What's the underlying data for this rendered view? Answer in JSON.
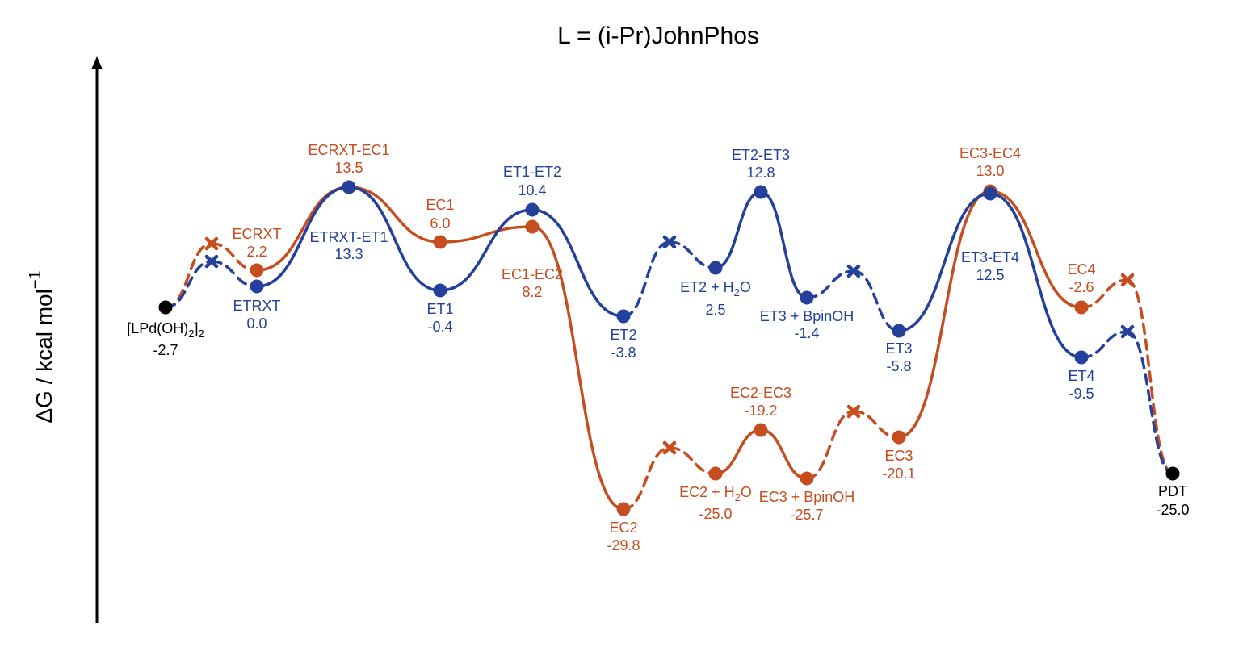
{
  "title": "L = (i-Pr)JohnPhos",
  "y_axis_label": "ΔG / kcal mol",
  "y_axis_label_sup": "−1",
  "colors": {
    "blue": "#23409a",
    "orange": "#c64d1f",
    "black": "#000000"
  },
  "states": {
    "start": {
      "name": "[LPd(OH)",
      "sub": "2",
      "name_end": "]",
      "sub_end": "2",
      "value": "-2.7"
    },
    "ECRXT": {
      "name": "ECRXT",
      "value": "2.2"
    },
    "ETRXT": {
      "name": "ETRXT",
      "value": "0.0"
    },
    "ECRXT_EC1": {
      "name": "ECRXT-EC1",
      "value": "13.5"
    },
    "ETRXT_ET1": {
      "name": "ETRXT-ET1",
      "value": "13.3"
    },
    "EC1": {
      "name": "EC1",
      "value": "6.0"
    },
    "ET1": {
      "name": "ET1",
      "value": "-0.4"
    },
    "ET1_ET2": {
      "name": "ET1-ET2",
      "value": "10.4"
    },
    "EC1_EC2": {
      "name": "EC1-EC2",
      "value": "8.2"
    },
    "ET2": {
      "name": "ET2",
      "value": "-3.8"
    },
    "EC2": {
      "name": "EC2",
      "value": "-29.8"
    },
    "ET2_H2O": {
      "name": "ET2 + H",
      "sub": "2",
      "name_end": "O",
      "value": "2.5"
    },
    "EC2_H2O": {
      "name": "EC2 + H",
      "sub": "2",
      "name_end": "O",
      "value": "-25.0"
    },
    "ET2_ET3": {
      "name": "ET2-ET3",
      "value": "12.8"
    },
    "EC2_EC3": {
      "name": "EC2-EC3",
      "value": "-19.2"
    },
    "ET3_BpinOH": {
      "name": "ET3 + BpinOH",
      "value": "-1.4"
    },
    "EC3_BpinOH": {
      "name": "EC3 + BpinOH",
      "value": "-25.7"
    },
    "ET3": {
      "name": "ET3",
      "value": "-5.8"
    },
    "EC3": {
      "name": "EC3",
      "value": "-20.1"
    },
    "EC3_EC4": {
      "name": "EC3-EC4",
      "value": "13.0"
    },
    "ET3_ET4": {
      "name": "ET3-ET4",
      "value": "12.5"
    },
    "EC4": {
      "name": "EC4",
      "value": "-2.6"
    },
    "ET4": {
      "name": "ET4",
      "value": "-9.5"
    },
    "PDT": {
      "name": "PDT",
      "value": "-25.0"
    }
  }
}
